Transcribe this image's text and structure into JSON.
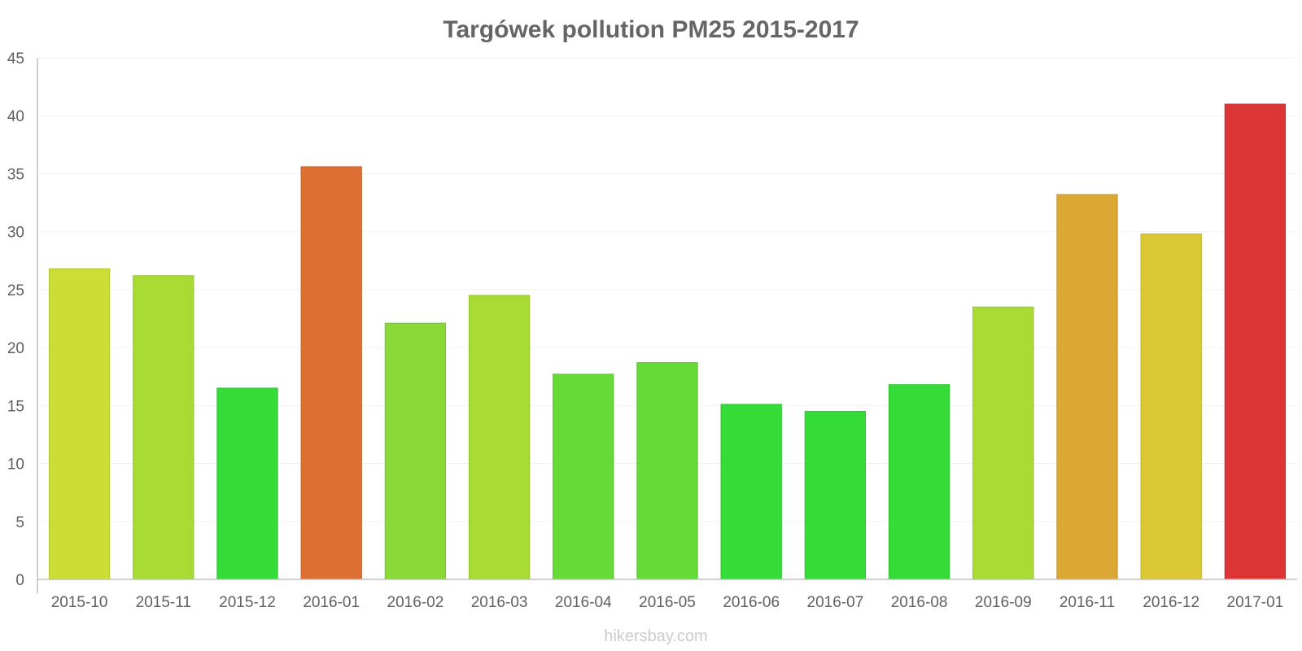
{
  "chart_data": {
    "type": "bar",
    "title": "Targówek pollution PM25 2015-2017",
    "xlabel": "",
    "ylabel": "",
    "ylim": [
      0,
      45
    ],
    "y_ticks": [
      0,
      5,
      10,
      15,
      20,
      25,
      30,
      35,
      40,
      45
    ],
    "grid": true,
    "legend": "none",
    "categories": [
      "2015-10",
      "2015-11",
      "2015-12",
      "2016-01",
      "2016-02",
      "2016-03",
      "2016-04",
      "2016-05",
      "2016-06",
      "2016-07",
      "2016-08",
      "2016-09",
      "2016-11",
      "2016-12",
      "2017-01"
    ],
    "values": [
      26.8,
      26.2,
      16.5,
      35.6,
      22.1,
      24.5,
      17.7,
      18.7,
      15.1,
      14.5,
      16.8,
      23.5,
      33.2,
      29.8,
      41.0
    ],
    "bar_colors": [
      "#cbdd36",
      "#a8db33",
      "#35dc38",
      "#de6f33",
      "#8ad936",
      "#a8db33",
      "#66da36",
      "#66da36",
      "#35dc38",
      "#35dc38",
      "#35dc38",
      "#a8db33",
      "#dca834",
      "#dac934",
      "#dc3535"
    ],
    "bar_border_colors": [
      "#b5c42f",
      "#95c22d",
      "#2fc232",
      "#c4622d",
      "#7ac12f",
      "#95c22d",
      "#5ac12f",
      "#5ac12f",
      "#2fc232",
      "#2fc232",
      "#2fc232",
      "#95c22d",
      "#c4952e",
      "#c2b22e",
      "#c42f2f"
    ]
  },
  "watermark": "hikersbay.com"
}
